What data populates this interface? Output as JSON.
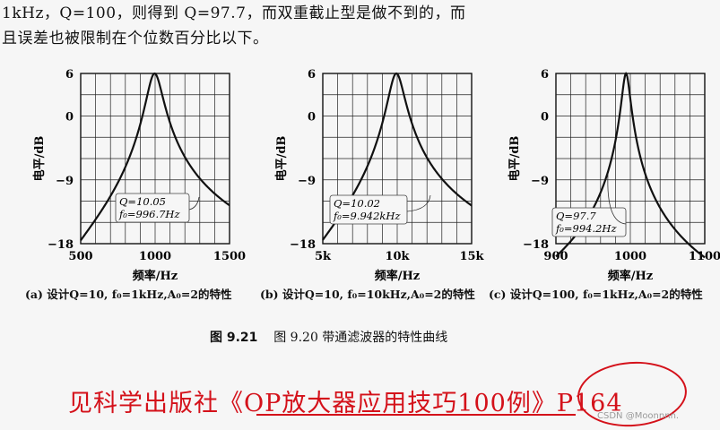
{
  "text": {
    "line1": "1kHz，Q=100，则得到 Q=97.7，而双重截止型是做不到的，而",
    "line2": "且误差也被限制在个位数百分比以下。",
    "figure_caption_num": "图 9.21",
    "figure_caption_text": "图 9.20 带通滤波器的特性曲线",
    "reference": "见科学出版社《OP放大器应用技巧100例》P164",
    "watermark": "CSDN @Moonnnn."
  },
  "chart_data": [
    {
      "type": "line",
      "ylabel": "电平/dB",
      "xlabel": "频率/Hz",
      "caption": "(a) 设计Q=10, f₀=1kHz,A₀=2的特性",
      "xlim": [
        500,
        1500
      ],
      "ylim": [
        -18,
        6
      ],
      "xticks": [
        "500",
        "1000",
        "1500"
      ],
      "yticks": [
        "6",
        "0",
        "-9",
        "-18"
      ],
      "annotation": [
        "Q=10.05",
        "f₀=996.7Hz"
      ],
      "series": [
        {
          "f0": 996.7,
          "Q": 10.05,
          "peak_db": 6
        }
      ]
    },
    {
      "type": "line",
      "ylabel": "电平/dB",
      "xlabel": "频率/Hz",
      "caption": "(b) 设计Q=10, f₀=10kHz,A₀=2的特性",
      "xlim": [
        5000,
        15000
      ],
      "ylim": [
        -18,
        6
      ],
      "xticks": [
        "5k",
        "10k",
        "15k"
      ],
      "yticks": [
        "6",
        "0",
        "-9",
        "-18"
      ],
      "annotation": [
        "Q=10.02",
        "f₀=9.942kHz"
      ],
      "series": [
        {
          "f0": 9942,
          "Q": 10.02,
          "peak_db": 6
        }
      ]
    },
    {
      "type": "line",
      "ylabel": "电平/dB",
      "xlabel": "频率/Hz",
      "caption": "(c) 设计Q=100, f₀=1kHz,A₀=2的特性",
      "xlim": [
        900,
        1100
      ],
      "ylim": [
        -18,
        6
      ],
      "xticks": [
        "900",
        "1000",
        "1100"
      ],
      "yticks": [
        "6",
        "0",
        "-9",
        "-18"
      ],
      "annotation": [
        "Q=97.7",
        "f₀=994.2Hz"
      ],
      "series": [
        {
          "f0": 994.2,
          "Q": 97.7,
          "peak_db": 6
        }
      ]
    }
  ]
}
